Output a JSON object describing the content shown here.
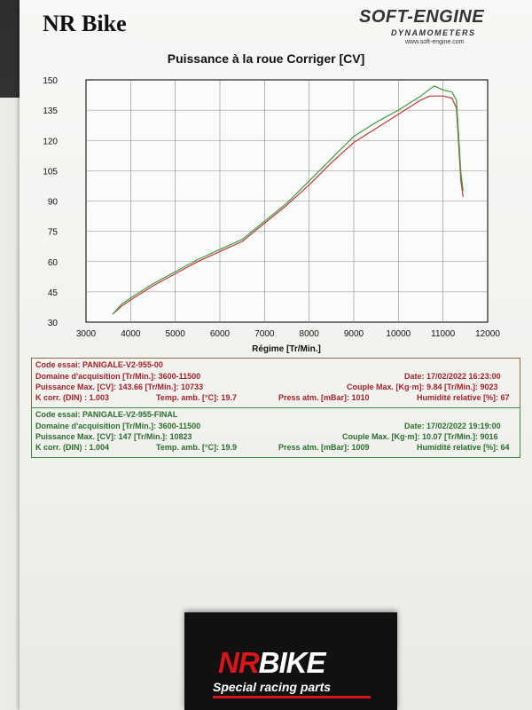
{
  "header": {
    "brand": "NR Bike",
    "logo_main": "SOFT-ENGINE",
    "logo_sub": "DYNAMOMETERS",
    "logo_url": "www.soft-engine.com"
  },
  "colors": {
    "run1": "#c0393b",
    "run2": "#3f9a48",
    "grid": "#8a8a8a"
  },
  "chart_data": {
    "type": "line",
    "title": "Puissance à la roue Corriger [CV]",
    "xlabel": "Régime [Tr/Min.]",
    "ylabel": "",
    "xlim": [
      3000,
      12000
    ],
    "ylim": [
      30,
      150
    ],
    "xticks": [
      3000,
      4000,
      5000,
      6000,
      7000,
      8000,
      9000,
      10000,
      11000,
      12000
    ],
    "yticks": [
      30,
      45,
      60,
      75,
      90,
      105,
      120,
      135,
      150
    ],
    "grid": true,
    "series": [
      {
        "name": "PANIGALE-V2-955-00",
        "color": "#c0393b",
        "x": [
          3600,
          3800,
          4000,
          4500,
          5000,
          5500,
          6000,
          6500,
          7000,
          7500,
          8000,
          8500,
          9000,
          9500,
          10000,
          10500,
          10700,
          11000,
          11200,
          11300,
          11350,
          11400,
          11450
        ],
        "y": [
          34,
          38,
          41,
          48,
          54,
          60,
          65,
          70,
          79,
          88,
          98,
          109,
          119,
          126,
          133,
          140,
          142,
          142,
          141,
          136,
          118,
          100,
          92
        ]
      },
      {
        "name": "PANIGALE-V2-955-FINAL",
        "color": "#3f9a48",
        "x": [
          3600,
          3800,
          4000,
          4500,
          5000,
          5500,
          6000,
          6500,
          7000,
          7500,
          8000,
          8500,
          9000,
          9500,
          10000,
          10500,
          10800,
          11000,
          11200,
          11300,
          11350,
          11400,
          11450
        ],
        "y": [
          34,
          39,
          42,
          49,
          55,
          61,
          66,
          71,
          80,
          89,
          100,
          111,
          122,
          129,
          135,
          142,
          147,
          145,
          144,
          140,
          122,
          104,
          95
        ]
      }
    ]
  },
  "runs": [
    {
      "code": "Code essai: PANIGALE-V2-955-00",
      "domain": "Domaine d'acquisition [Tr/Min.]: 3600-11500",
      "date": "Date: 17/02/2022   16:23:00",
      "power": "Puissance Max. [CV]: 143.66   [Tr/Min.]: 10733",
      "torque": "Couple Max. [Kg·m]: 9.84   [Tr/Min.]: 9023",
      "kcorr": "K corr. (DIN) : 1.003",
      "temp": "Temp. amb. [°C]: 19.7",
      "press": "Press atm. [mBar]: 1010",
      "humid": "Humidité relative [%]: 67"
    },
    {
      "code": "Code essai: PANIGALE-V2-955-FINAL",
      "domain": "Domaine d'acquisition [Tr/Min.]: 3600-11500",
      "date": "Date: 17/02/2022   19:19:00",
      "power": "Puissance Max. [CV]: 147   [Tr/Min.]: 10823",
      "torque": "Couple Max. [Kg·m]: 10.07   [Tr/Min.]: 9016",
      "kcorr": "K corr. (DIN) : 1.004",
      "temp": "Temp. amb. [°C]: 19.9",
      "press": "Press atm. [mBar]: 1009",
      "humid": "Humidité relative [%]: 64"
    }
  ],
  "card": {
    "logo_nr": "NR",
    "logo_bike": "BIKE",
    "tagline": "Special racing parts"
  }
}
